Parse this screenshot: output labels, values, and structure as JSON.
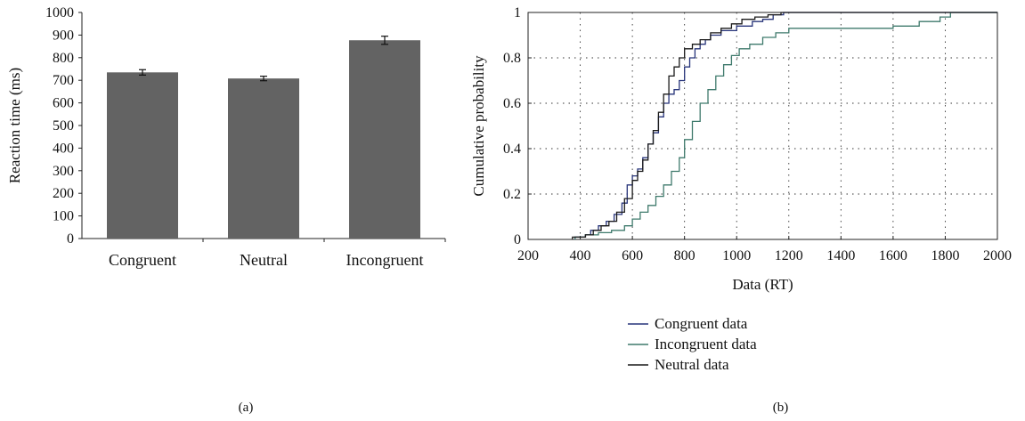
{
  "chart_data": [
    {
      "panel_label": "(a)",
      "type": "bar",
      "categories": [
        "Congruent",
        "Neutral",
        "Incongruent"
      ],
      "values": [
        735,
        708,
        877
      ],
      "errors": [
        24,
        20,
        36
      ],
      "ylabel": "Reaction time (ms)",
      "xlabel": "",
      "ylim": [
        0,
        1000
      ],
      "yticks": [
        0,
        100,
        200,
        300,
        400,
        500,
        600,
        700,
        800,
        900,
        1000
      ],
      "bar_color": "#636363",
      "grid": false
    },
    {
      "panel_label": "(b)",
      "type": "line",
      "xlabel": "Data (RT)",
      "ylabel": "Cumulative probability",
      "xlim": [
        200,
        2000
      ],
      "ylim": [
        0,
        1
      ],
      "xticks": [
        200,
        400,
        600,
        800,
        1000,
        1200,
        1400,
        1600,
        1800,
        2000
      ],
      "yticks": [
        0,
        0.2,
        0.4,
        0.6,
        0.8,
        1
      ],
      "grid": true,
      "legend_position": "below",
      "series": [
        {
          "name": "Congruent data",
          "color": "#27347a",
          "x": [
            380,
            420,
            440,
            470,
            500,
            530,
            560,
            580,
            600,
            620,
            640,
            660,
            680,
            700,
            720,
            740,
            760,
            780,
            800,
            820,
            840,
            860,
            880,
            900,
            940,
            1000,
            1060,
            1100,
            1140,
            1180
          ],
          "y": [
            0.01,
            0.02,
            0.04,
            0.06,
            0.08,
            0.11,
            0.16,
            0.24,
            0.28,
            0.31,
            0.36,
            0.42,
            0.47,
            0.54,
            0.6,
            0.64,
            0.66,
            0.7,
            0.76,
            0.8,
            0.84,
            0.86,
            0.88,
            0.9,
            0.92,
            0.94,
            0.96,
            0.97,
            0.99,
            1.0
          ]
        },
        {
          "name": "Incongruent data",
          "color": "#3f7a6c",
          "x": [
            380,
            420,
            470,
            520,
            570,
            600,
            630,
            660,
            690,
            720,
            750,
            780,
            800,
            830,
            860,
            890,
            920,
            950,
            980,
            1010,
            1050,
            1100,
            1150,
            1200,
            1300,
            1400,
            1600,
            1700,
            1780,
            1820
          ],
          "y": [
            0.01,
            0.02,
            0.03,
            0.04,
            0.06,
            0.09,
            0.12,
            0.15,
            0.19,
            0.24,
            0.3,
            0.36,
            0.44,
            0.52,
            0.6,
            0.66,
            0.72,
            0.77,
            0.81,
            0.84,
            0.86,
            0.89,
            0.91,
            0.93,
            0.93,
            0.93,
            0.94,
            0.96,
            0.98,
            1.0
          ]
        },
        {
          "name": "Neutral data",
          "color": "#1a1a1a",
          "x": [
            370,
            420,
            450,
            480,
            510,
            540,
            570,
            600,
            620,
            640,
            660,
            680,
            700,
            720,
            740,
            760,
            780,
            800,
            830,
            860,
            900,
            940,
            980,
            1020,
            1070,
            1120,
            1170
          ],
          "y": [
            0.01,
            0.02,
            0.04,
            0.06,
            0.08,
            0.12,
            0.18,
            0.26,
            0.3,
            0.35,
            0.42,
            0.48,
            0.56,
            0.64,
            0.72,
            0.76,
            0.8,
            0.84,
            0.86,
            0.88,
            0.91,
            0.93,
            0.95,
            0.97,
            0.98,
            0.99,
            1.0
          ]
        }
      ]
    }
  ]
}
